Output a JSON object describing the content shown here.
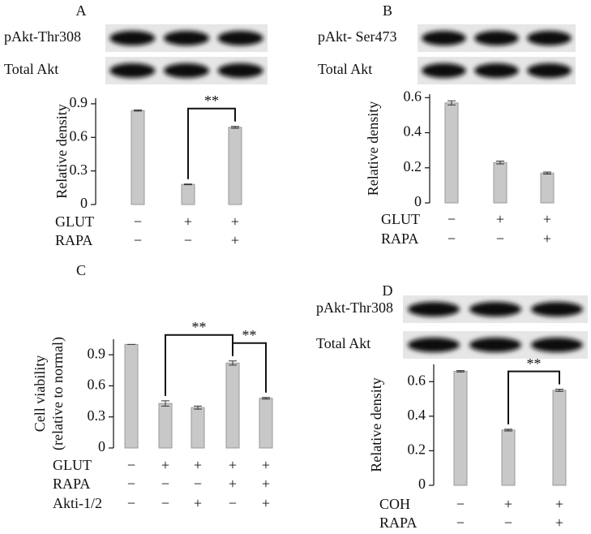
{
  "chart_data": [
    {
      "type": "bar",
      "title": "A",
      "blot_labels": [
        "pAkt-Thr308",
        "Total Akt"
      ],
      "y_label": [
        "Relative density"
      ],
      "values": [
        0.84,
        0.18,
        0.69
      ],
      "errors": [
        0.005,
        0.003,
        0.008
      ],
      "color": "#c8c8c8",
      "ylim": [
        0,
        0.95
      ],
      "yticks": [
        0,
        0.3,
        0.6,
        0.9
      ],
      "significance": [
        {
          "between": [
            1,
            2
          ],
          "label": "**"
        }
      ],
      "treatments": [
        {
          "name": "GLUT",
          "signs": [
            "−",
            "+",
            "+"
          ]
        },
        {
          "name": "RAPA",
          "signs": [
            "−",
            "−",
            "+"
          ]
        }
      ]
    },
    {
      "type": "bar",
      "title": "B",
      "blot_labels": [
        "pAkt- Ser473",
        "Total Akt"
      ],
      "y_label": [
        "Relative density"
      ],
      "values": [
        0.57,
        0.23,
        0.17
      ],
      "errors": [
        0.012,
        0.008,
        0.006
      ],
      "color": "#c8c8c8",
      "ylim": [
        0,
        0.62
      ],
      "yticks": [
        0,
        0.2,
        0.4,
        0.6
      ],
      "significance": [],
      "treatments": [
        {
          "name": "GLUT",
          "signs": [
            "−",
            "+",
            "+"
          ]
        },
        {
          "name": "RAPA",
          "signs": [
            "−",
            "−",
            "+"
          ]
        }
      ]
    },
    {
      "type": "bar",
      "title": "C",
      "blot_labels": [],
      "y_label": [
        "Cell viability",
        "(relative to normal)"
      ],
      "values": [
        1.0,
        0.43,
        0.39,
        0.82,
        0.48
      ],
      "errors": [
        0,
        0.025,
        0.015,
        0.02,
        0.008
      ],
      "color": "#c8c8c8",
      "ylim": [
        0,
        1.05
      ],
      "yticks": [
        0,
        0.3,
        0.6,
        0.9
      ],
      "significance": [
        {
          "between": [
            1,
            3
          ],
          "label": "**"
        },
        {
          "between": [
            3,
            4
          ],
          "label": "**"
        }
      ],
      "treatments": [
        {
          "name": "GLUT",
          "signs": [
            "−",
            "+",
            "+",
            "+",
            "+"
          ]
        },
        {
          "name": "RAPA",
          "signs": [
            "−",
            "−",
            "−",
            "+",
            "+"
          ]
        },
        {
          "name": "Akti-1/2",
          "signs": [
            "−",
            "−",
            "+",
            "−",
            "+"
          ]
        }
      ]
    },
    {
      "type": "bar",
      "title": "D",
      "blot_labels": [
        "pAkt-Thr308",
        "Total Akt"
      ],
      "y_label": [
        "Relative density"
      ],
      "values": [
        0.66,
        0.32,
        0.55
      ],
      "errors": [
        0.004,
        0.005,
        0.006
      ],
      "color": "#c8c8c8",
      "ylim": [
        0,
        0.7
      ],
      "yticks": [
        0,
        0.2,
        0.4,
        0.6
      ],
      "significance": [
        {
          "between": [
            1,
            2
          ],
          "label": "**"
        }
      ],
      "treatments": [
        {
          "name": "COH",
          "signs": [
            "−",
            "+",
            "+"
          ]
        },
        {
          "name": "RAPA",
          "signs": [
            "−",
            "−",
            "+"
          ]
        }
      ]
    }
  ]
}
